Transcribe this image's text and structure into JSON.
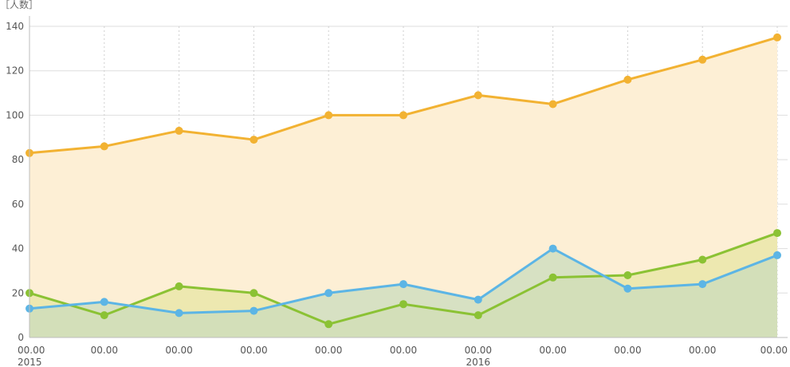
{
  "chart_data": {
    "type": "area",
    "ylabel": "［人数］",
    "ylim": [
      0,
      140
    ],
    "yticks": [
      0,
      20,
      40,
      60,
      80,
      100,
      120,
      140
    ],
    "x_tick_labels": [
      "00.00",
      "00.00",
      "00.00",
      "00.00",
      "00.00",
      "00.00",
      "00.00",
      "00.00",
      "00.00",
      "00.00",
      "00.00"
    ],
    "year_labels": [
      {
        "index": 0,
        "label": "2015"
      },
      {
        "index": 6,
        "label": "2016"
      }
    ],
    "grid": true,
    "series": [
      {
        "color": "#f2b232",
        "fill": "#fdefd5",
        "values": [
          83,
          86,
          93,
          89,
          100,
          100,
          109,
          105,
          116,
          125,
          135
        ]
      },
      {
        "color": "#8bc234",
        "fill": "#e7e6a3",
        "values": [
          20,
          10,
          23,
          20,
          6,
          15,
          10,
          27,
          28,
          35,
          47
        ]
      },
      {
        "color": "#5cb5e5",
        "fill": "#c9dcbc",
        "values": [
          13,
          16,
          11,
          12,
          20,
          24,
          17,
          40,
          22,
          24,
          37
        ]
      }
    ]
  }
}
